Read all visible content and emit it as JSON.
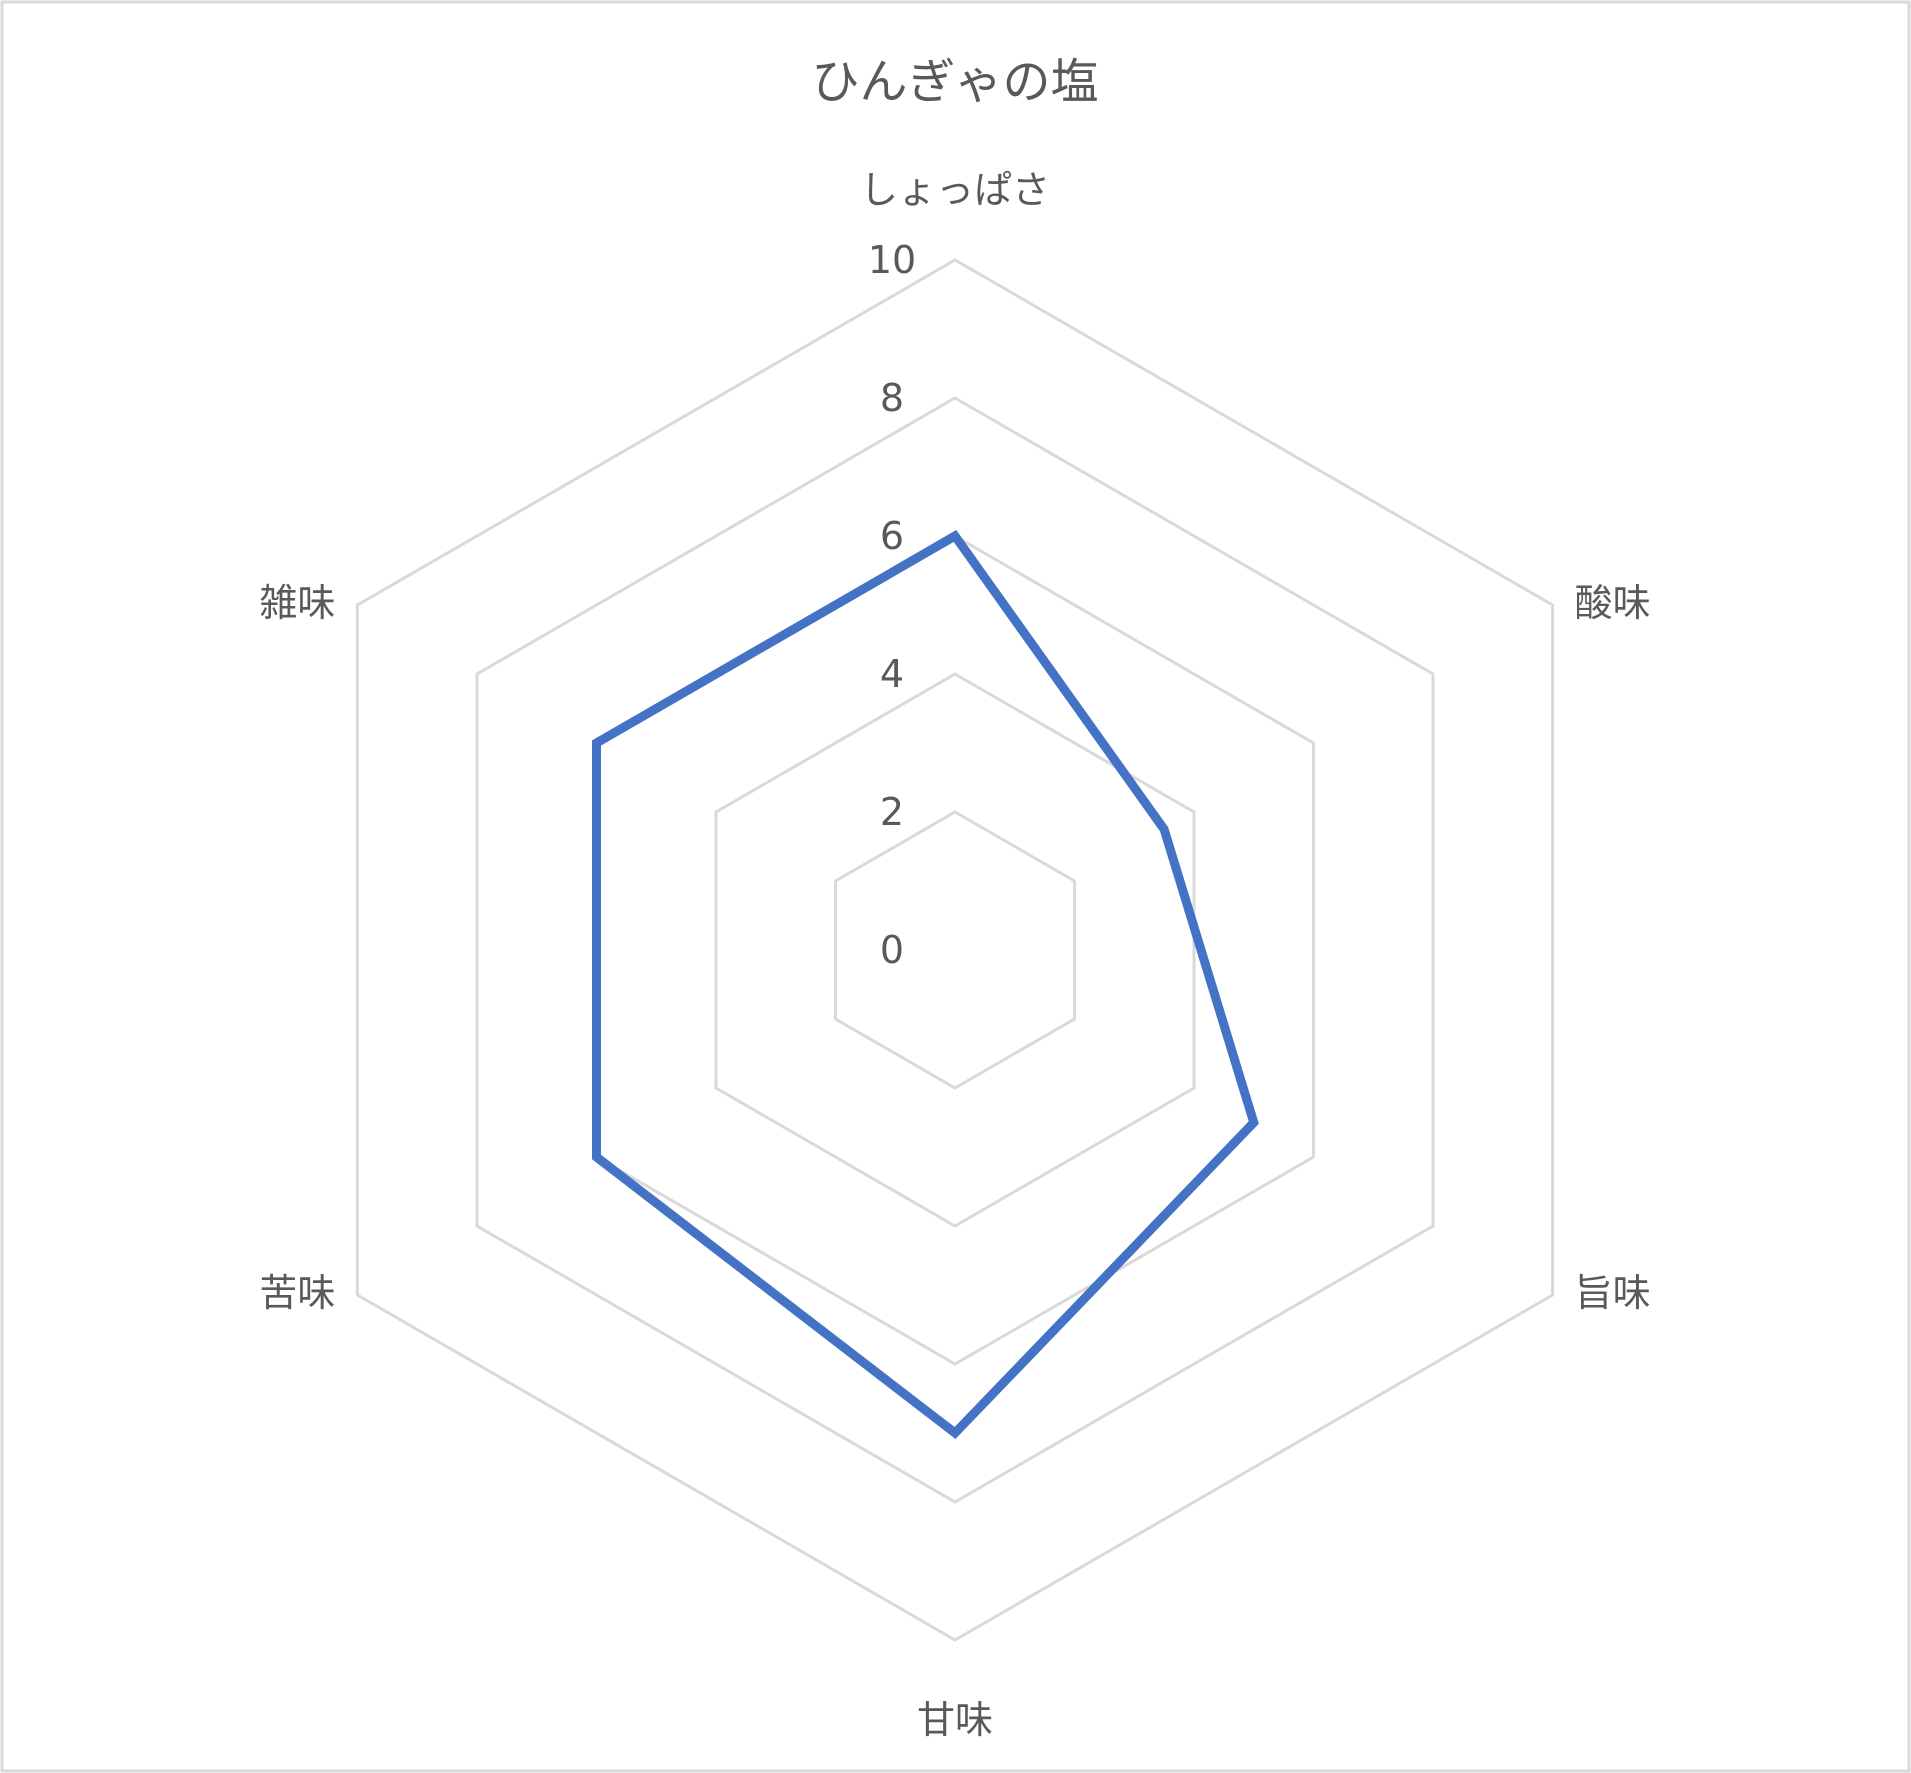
{
  "chart_data": {
    "type": "radar",
    "title": "ひんぎゃの塩",
    "categories": [
      "しょっぱさ",
      "酸味",
      "旨味",
      "甘味",
      "苦味",
      "雑味"
    ],
    "series": [
      {
        "values": [
          6,
          3.5,
          5,
          7,
          6,
          6
        ],
        "color": "#4472c4"
      }
    ],
    "rlim": [
      0,
      10
    ],
    "ticks": [
      0,
      2,
      4,
      6,
      8,
      10
    ],
    "tick_labels": [
      "0",
      "2",
      "4",
      "6",
      "8",
      "10"
    ],
    "grid": true,
    "legend": "none",
    "colors": {
      "grid": "#d9d9d9",
      "text": "#595959",
      "border": "#d9d9d9"
    }
  }
}
